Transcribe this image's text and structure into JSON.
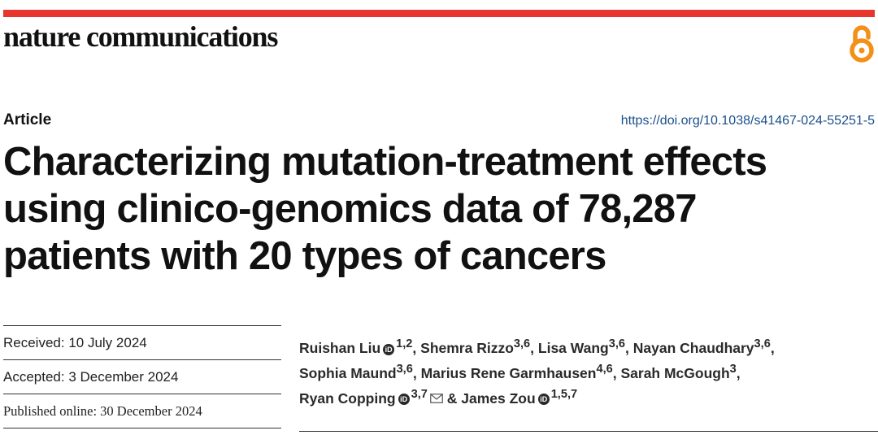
{
  "header": {
    "journal": "nature communications",
    "accent_color": "#e8352e",
    "open_access_color": "#f39019",
    "open_access_icon": "open-access-lock-icon"
  },
  "article": {
    "type": "Article",
    "doi": "https://doi.org/10.1038/s41467-024-55251-5",
    "title_lines": [
      "Characterizing mutation-treatment effects",
      "using clinico-genomics data of 78,287",
      "patients with 20 types of cancers"
    ]
  },
  "dates": {
    "received": "Received: 10 July 2024",
    "accepted": "Accepted: 3 December 2024",
    "published": "Published online: 30 December 2024"
  },
  "authors": [
    {
      "name": "Ruishan Liu",
      "aff": "1,2",
      "orcid": true,
      "sep": ", "
    },
    {
      "name": "Shemra Rizzo",
      "aff": "3,6",
      "orcid": false,
      "sep": ", "
    },
    {
      "name": "Lisa Wang",
      "aff": "3,6",
      "orcid": false,
      "sep": ", "
    },
    {
      "name": "Nayan Chaudhary",
      "aff": "3,6",
      "orcid": false,
      "sep": ","
    },
    {
      "name": "Sophia Maund",
      "aff": "3,6",
      "orcid": false,
      "sep": ", "
    },
    {
      "name": "Marius Rene Garmhausen",
      "aff": "4,6",
      "orcid": false,
      "sep": ", "
    },
    {
      "name": "Sarah McGough",
      "aff": "3",
      "orcid": false,
      "sep": ","
    },
    {
      "name": "Ryan Copping",
      "aff": "3,7",
      "orcid": true,
      "sep": " & ",
      "email": true
    },
    {
      "name": "James Zou",
      "aff": "1,5,7",
      "orcid": true,
      "sep": ""
    }
  ]
}
